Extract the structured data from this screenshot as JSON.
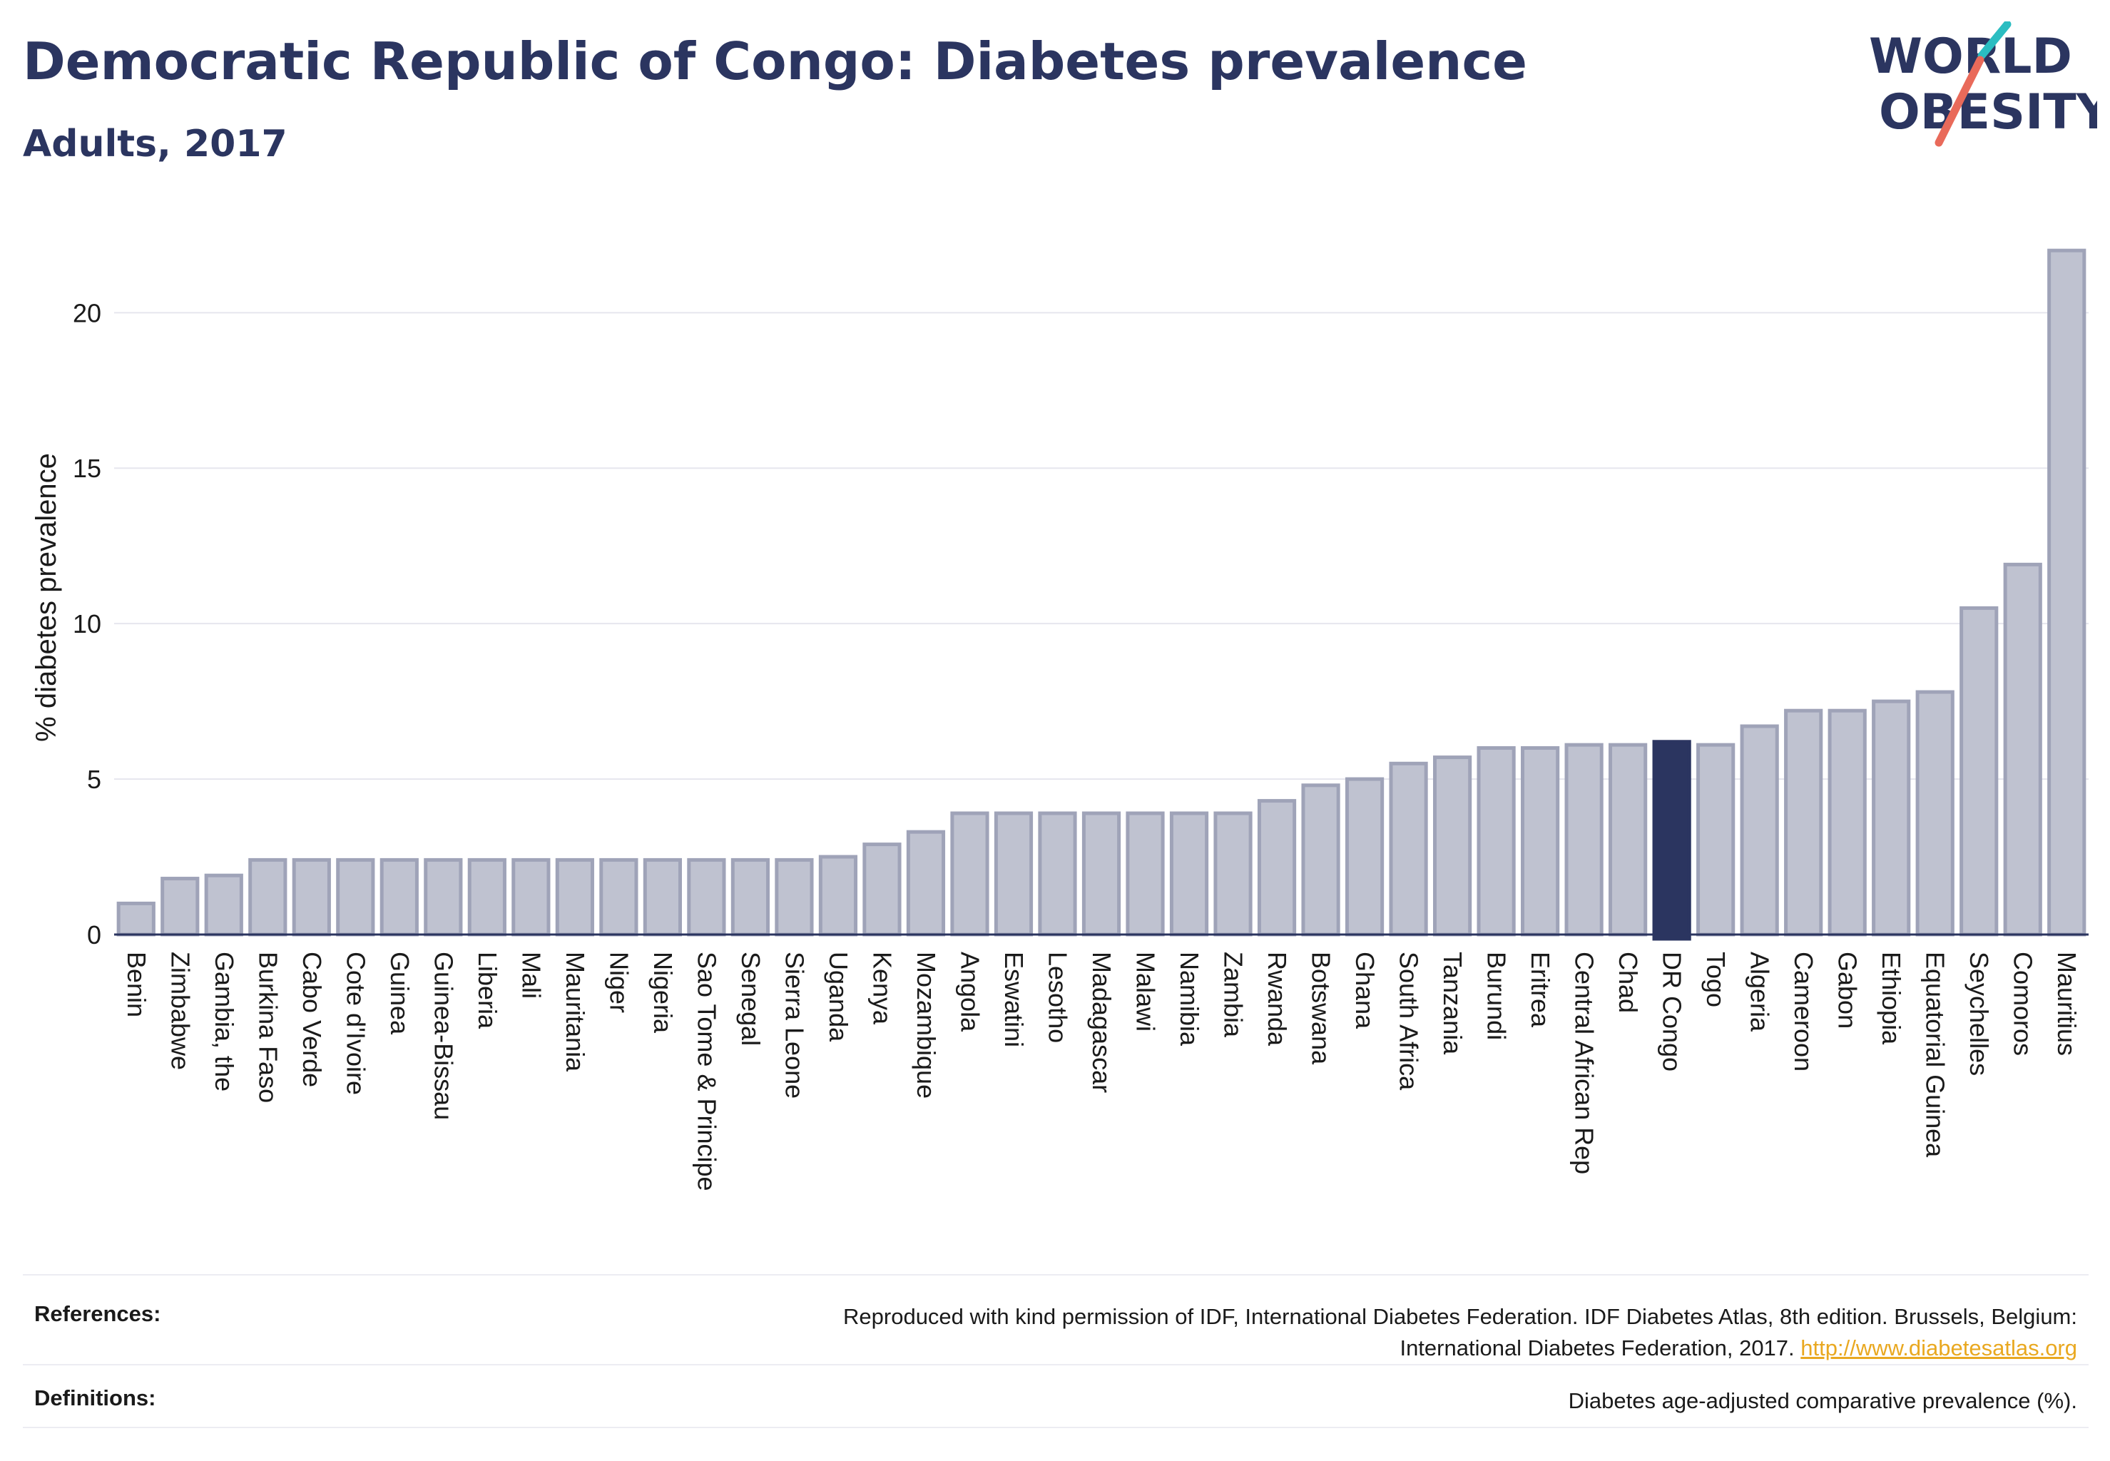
{
  "header": {
    "title": "Democratic Republic of Congo: Diabetes prevalence",
    "subtitle": "Adults, 2017"
  },
  "logo": {
    "line1": "WORLD",
    "line2": "OBESITY",
    "colors": {
      "text": "#2b3560",
      "teal": "#2bbdc1",
      "coral": "#e96a5a"
    }
  },
  "colors": {
    "bar": "#bfc2d0",
    "bar_stroke": "#9fa3b8",
    "highlight": "#2b3560",
    "axis_text": "#1a1a1a",
    "grid": "#e6e6ee"
  },
  "chart_data": {
    "type": "bar",
    "ylabel": "% diabetes prevalence",
    "ylim": [
      0,
      22.6
    ],
    "yticks": [
      0,
      5,
      10,
      15,
      20
    ],
    "grid": true,
    "highlight": "DR Congo",
    "categories": [
      "Benin",
      "Zimbabwe",
      "Gambia, the",
      "Burkina Faso",
      "Cabo Verde",
      "Cote d'Ivoire",
      "Guinea",
      "Guinea-Bissau",
      "Liberia",
      "Mali",
      "Mauritania",
      "Niger",
      "Nigeria",
      "Sao Tome & Principe",
      "Senegal",
      "Sierra Leone",
      "Uganda",
      "Kenya",
      "Mozambique",
      "Angola",
      "Eswatini",
      "Lesotho",
      "Madagascar",
      "Malawi",
      "Namibia",
      "Zambia",
      "Rwanda",
      "Botswana",
      "Ghana",
      "South Africa",
      "Tanzania",
      "Burundi",
      "Eritrea",
      "Central African Rep",
      "Chad",
      "DR Congo",
      "Togo",
      "Algeria",
      "Cameroon",
      "Gabon",
      "Ethiopia",
      "Equatorial Guinea",
      "Seychelles",
      "Comoros",
      "Mauritius"
    ],
    "values": [
      1.0,
      1.8,
      1.9,
      2.4,
      2.4,
      2.4,
      2.4,
      2.4,
      2.4,
      2.4,
      2.4,
      2.4,
      2.4,
      2.4,
      2.4,
      2.4,
      2.5,
      2.9,
      3.3,
      3.9,
      3.9,
      3.9,
      3.9,
      3.9,
      3.9,
      3.9,
      4.3,
      4.8,
      5.0,
      5.5,
      5.7,
      6.0,
      6.0,
      6.1,
      6.1,
      6.2,
      6.1,
      6.7,
      7.2,
      7.2,
      7.5,
      7.8,
      10.5,
      11.9,
      22.0
    ]
  },
  "references": {
    "label": "References:",
    "line1": "Reproduced with kind permission of IDF, International Diabetes Federation. IDF Diabetes Atlas, 8th edition. Brussels, Belgium:",
    "line2": "International Diabetes Federation, 2017.",
    "link": "http://www.diabetesatlas.org"
  },
  "definitions": {
    "label": "Definitions:",
    "text": "Diabetes age-adjusted comparative prevalence (%)."
  }
}
